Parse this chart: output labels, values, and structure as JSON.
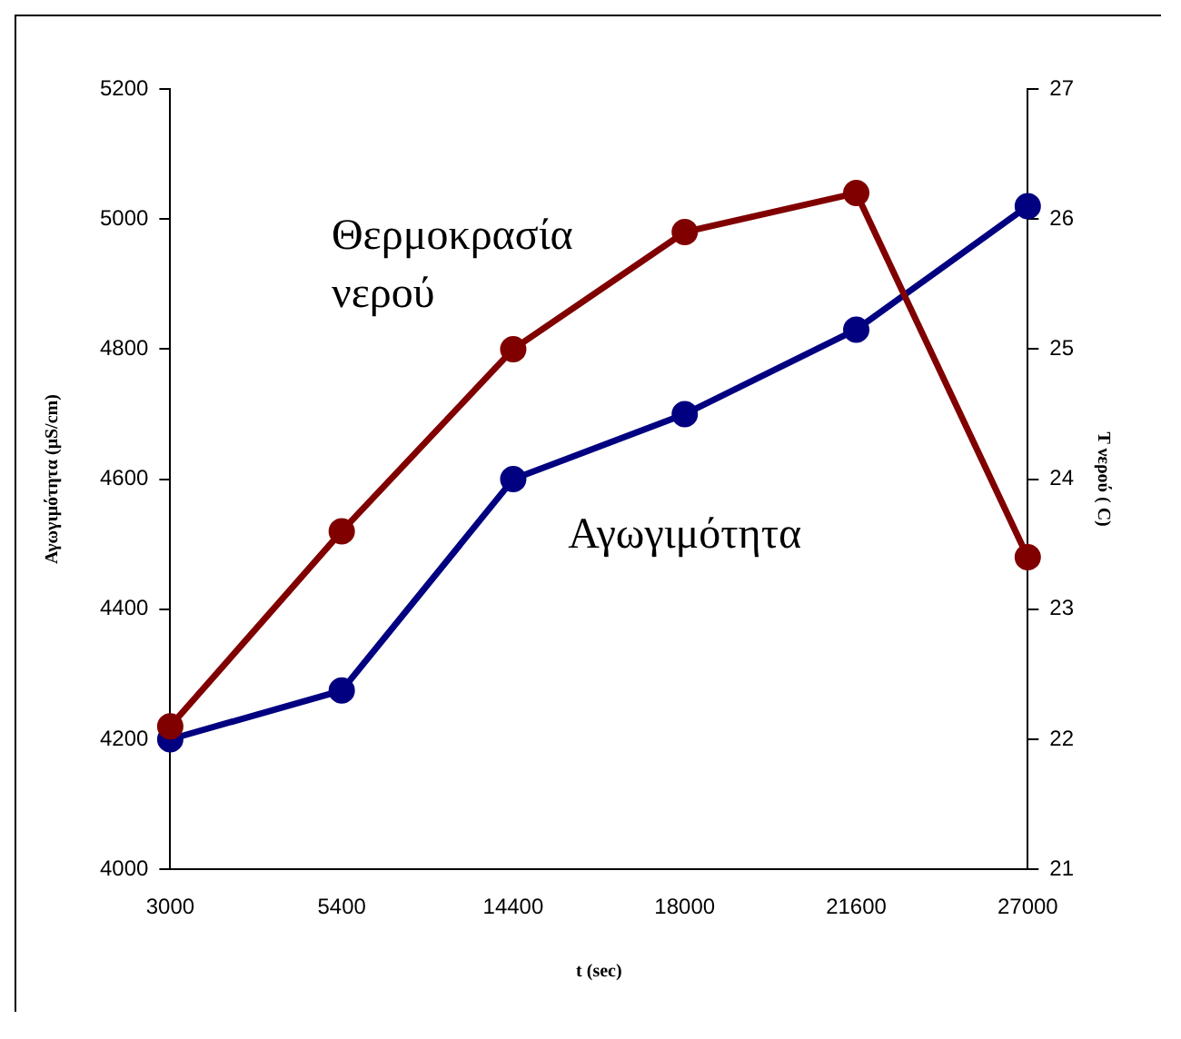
{
  "chart_data": {
    "type": "line",
    "xlabel": "t (sec)",
    "ylabel": "Αγωγιμότητα (μS/cm)",
    "y2label": "T νερού ( C)",
    "categories": [
      "3000",
      "5400",
      "14400",
      "18000",
      "21600",
      "27000"
    ],
    "series": [
      {
        "name": "Θερμοκρασία νερού",
        "color": "#800000",
        "axis": "y2",
        "values": [
          22.1,
          23.6,
          25.0,
          25.9,
          26.2,
          23.4
        ]
      },
      {
        "name": "Αγωγιμότητα",
        "color": "#000080",
        "values": [
          4200,
          4275,
          4600,
          4700,
          4830,
          5020
        ]
      }
    ],
    "ylim": [
      4000,
      5200
    ],
    "yticks": [
      4000,
      4200,
      4400,
      4600,
      4800,
      5000,
      5200
    ],
    "y2lim": [
      21,
      27
    ],
    "y2ticks": [
      21,
      22,
      23,
      24,
      25,
      26,
      27
    ],
    "grid": false,
    "legend": false,
    "marker": "circle",
    "line_style": "solid"
  }
}
